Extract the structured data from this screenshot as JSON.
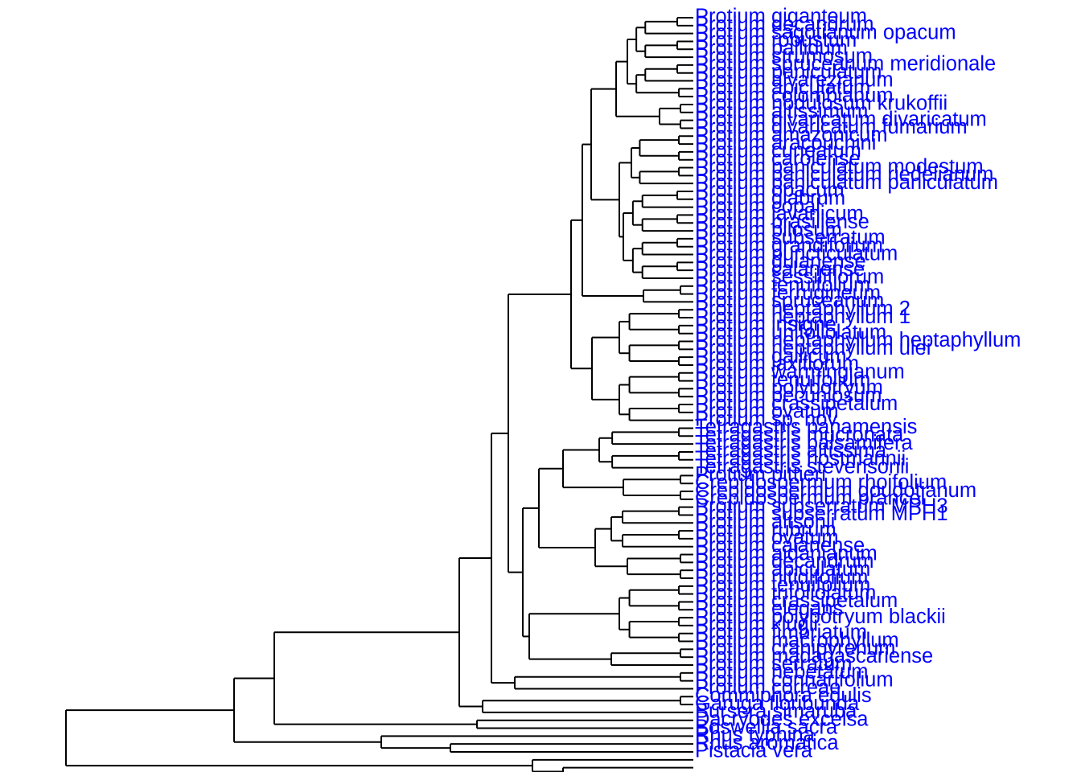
{
  "figure": {
    "type": "dendrogram",
    "branch_color": "#000000",
    "label_color": "#0000ff",
    "labels_top_to_bottom": [
      "Protium giganteum",
      "Protium decandrum",
      "Protium sagotianum opacum",
      "Protium robustum",
      "Protium pallidum",
      "Protium strumosum",
      "Protium spruceanum meridionale",
      "Protium paniculatum",
      "Protium alvarezianum",
      "Protium apiculatum",
      "Protium colombianum",
      "Protium nodulosum krukoffii",
      "Protium altissimum",
      "Protium divaricatum divaricatum",
      "Protium divaricatum fumarium",
      "Protium amazonicum",
      "Protium aracouchini",
      "Protium cuneatum",
      "Protium carolense",
      "Protium paniculatum modestum",
      "Protium paniculatum riedelianum",
      "Protium paniculatum paniculatum",
      "Protium opacum",
      "Protium glabrum",
      "Protium copal",
      "Protium javanicum",
      "Protium brasiliense",
      "Protium pilosum",
      "Protium subserratum",
      "Protium grandifolium",
      "Protium puncticulatum",
      "Protium guianense",
      "Protium calanense",
      "Protium sessiliflorum",
      "Protium tenuifolium",
      "Protium ferrugineum",
      "Protium spruceanum",
      "Protium heptaphyllum 2",
      "Protium heptaphyllum 1",
      "Protium insigne",
      "Protium unifoliolatum",
      "Protium heptaphyllum heptaphyllum",
      "Protium heptaphyllum ulei",
      "Protium gallicum",
      "Protium laxiflorum",
      "Protium warmingianum",
      "Protium tenuifolium",
      "Protium polybotryum",
      "Protium pecuniosum",
      "Protium crassipetalum",
      "Protium ovatum",
      "Protium sp. nov.",
      "Tetragastris panamensis",
      "Tetragastris mucronata",
      "Tetragastris balsamifera",
      "Tetragastris altissima",
      "Tetragastris hostmannii",
      "Tetragastris stevensonii",
      "Protium pittieri",
      "Crepidospermum rhoifolium",
      "Crepidospermum goudotianum",
      "Crepidospermum prancei",
      "Protium subserratum MPH3",
      "Protium subserratum MPH1",
      "Protium altsonii",
      "Protium rubrum",
      "Protium ovatum",
      "Protium calanense",
      "Protium aidanianum",
      "Protium decandrum",
      "Protium apiculatum",
      "Protium nitidifolium",
      "Protium tenuifolium",
      "Protium trifoliolatum",
      "Protium crassipetalum",
      "Protium elegans",
      "Protium polybotryum blackii",
      "Protium klugii",
      "Protium fimbriatum",
      "Protium macrophyllum",
      "Protium cranipyrenum",
      "Protium madagascariense",
      "Protium serratum",
      "Protium hebetatum",
      "Protium connarifolium",
      "Protium correae",
      "Commiphora edulis",
      "Garuga floribunda",
      "Bursera simaruba",
      "Dacryodes excelsa",
      "Boswellia sacra",
      "Rhus typhina",
      "Rhus aromatica",
      "Pistacia vera"
    ]
  }
}
